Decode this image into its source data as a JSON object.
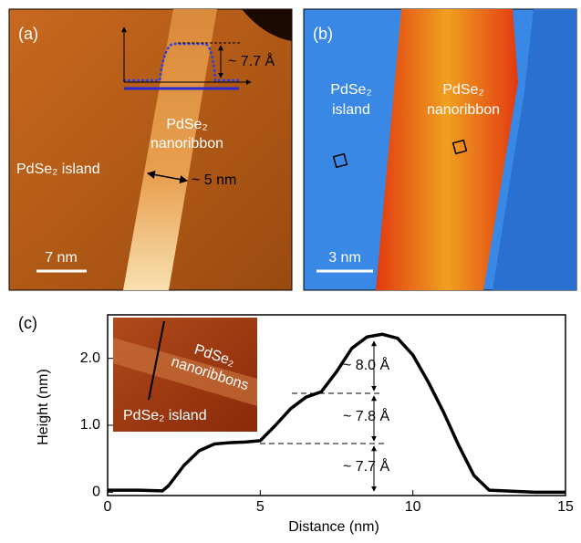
{
  "panel_a": {
    "label": "(a)",
    "profile_height": "~ 7.7 Å",
    "ribbon_name": "PdSe₂",
    "ribbon_word": "nanoribbon",
    "island": "PdSe₂ island",
    "width": "~ 5 nm",
    "scale": "7 nm"
  },
  "panel_b": {
    "label": "(b)",
    "island_name": "PdSe₂",
    "island_word": "island",
    "ribbon_name": "PdSe₂",
    "ribbon_word": "nanoribbon",
    "scale": "3 nm"
  },
  "chart_data": {
    "type": "line",
    "label": "(c)",
    "x_label": "Distance (nm)",
    "y_label": "Height (nm)",
    "x": [
      0,
      1,
      1.8,
      2,
      2.5,
      3,
      3.5,
      4,
      4.5,
      5,
      5.5,
      6,
      6.5,
      7,
      7.5,
      8,
      8.5,
      9,
      9.5,
      10,
      10.5,
      11,
      11.5,
      12,
      12.5,
      13,
      14,
      15
    ],
    "series": [
      {
        "color": "#000000",
        "values": [
          0.03,
          0.03,
          0.02,
          0.1,
          0.4,
          0.62,
          0.72,
          0.74,
          0.75,
          0.77,
          1.0,
          1.25,
          1.42,
          1.5,
          1.8,
          2.15,
          2.32,
          2.36,
          2.3,
          2.05,
          1.65,
          1.2,
          0.7,
          0.25,
          0.03,
          0.02,
          0.0,
          0.0
        ]
      }
    ],
    "xlim": [
      0,
      15
    ],
    "ylim": [
      -0.05,
      2.65
    ],
    "xticks": [
      0,
      5,
      10,
      15
    ],
    "yticks": [
      0,
      {
        "value": 1,
        "label": "1.0"
      },
      {
        "value": 2,
        "label": "2.0"
      }
    ],
    "annotations": [
      "~ 8.0 Å",
      "~ 7.8 Å",
      "~ 7.7 Å"
    ],
    "inset": {
      "ribbon_name": "PdSe₂",
      "ribbon_word": "nanoribbons",
      "island": "PdSe₂ island"
    }
  }
}
